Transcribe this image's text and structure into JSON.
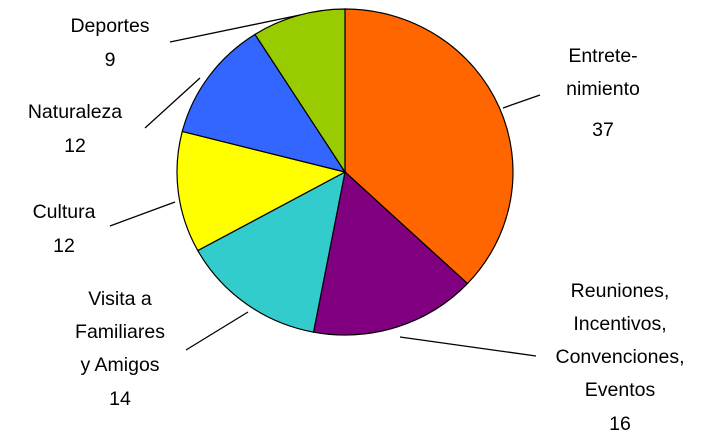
{
  "chart_data": {
    "type": "pie",
    "title": "",
    "start": "12 o'clock, clockwise",
    "slices": [
      {
        "key": "entretenimiento",
        "label_lines": [
          "Entrete-",
          "nimiento"
        ],
        "value": 37,
        "color": "#FF6600"
      },
      {
        "key": "reuniones",
        "label_lines": [
          "Reuniones,",
          "Incentivos,",
          "Convenciones,",
          "Eventos"
        ],
        "value": 16,
        "color": "#800080"
      },
      {
        "key": "visita",
        "label_lines": [
          "Visita a",
          "Familiares",
          "y Amigos"
        ],
        "value": 14,
        "color": "#33CCCC"
      },
      {
        "key": "cultura",
        "label_lines": [
          "Cultura"
        ],
        "value": 12,
        "color": "#FFFF00"
      },
      {
        "key": "naturaleza",
        "label_lines": [
          "Naturaleza"
        ],
        "value": 12,
        "color": "#3366FF"
      },
      {
        "key": "deportes",
        "label_lines": [
          "Deportes"
        ],
        "value": 9,
        "color": "#99CC00"
      }
    ]
  }
}
